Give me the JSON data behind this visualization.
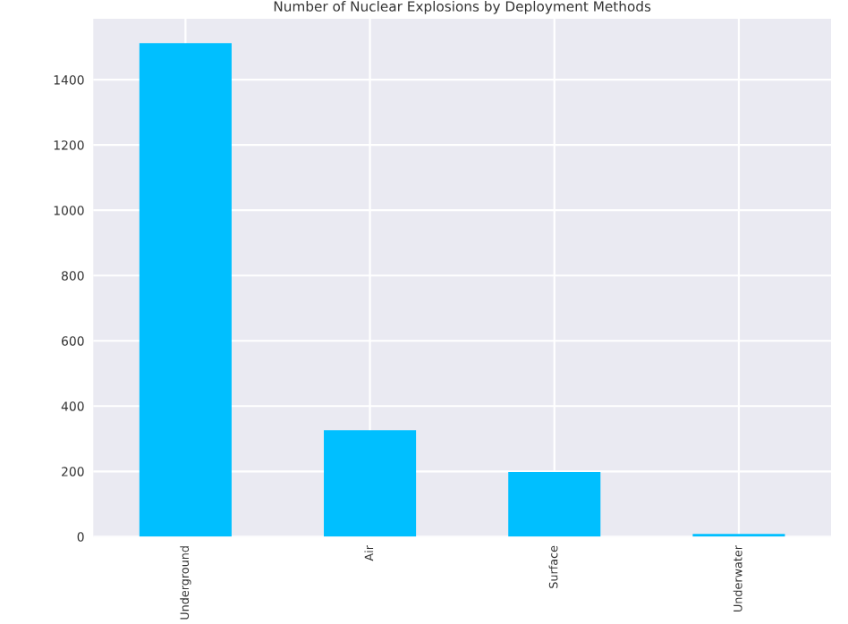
{
  "chart_data": {
    "type": "bar",
    "title": "Number of Nuclear Explosions by Deployment Methods",
    "categories": [
      "Underground",
      "Air",
      "Surface",
      "Underwater"
    ],
    "values": [
      1512,
      326,
      198,
      8
    ],
    "color": "#00bfff",
    "ylim": [
      0,
      1587
    ],
    "yticks": [
      0,
      200,
      400,
      600,
      800,
      1000,
      1200,
      1400
    ],
    "grid": true
  }
}
